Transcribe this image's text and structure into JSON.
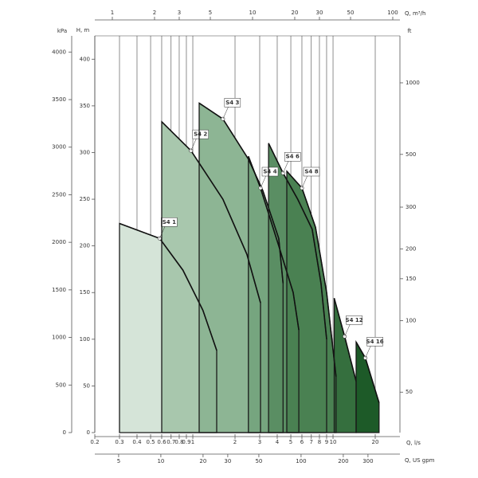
{
  "chart_data": {
    "type": "area",
    "x_label": "Q, l/s",
    "y_label": "H, m",
    "xscale": "log",
    "xlim": [
      0.2,
      30
    ],
    "xticks": [
      0.2,
      0.3,
      0.4,
      0.5,
      0.6,
      0.7,
      0.8,
      0.9,
      1,
      2,
      3,
      4,
      5,
      6,
      7,
      8,
      9,
      10,
      20
    ],
    "ylim": [
      0,
      425
    ],
    "yticks": [
      0,
      50,
      100,
      150,
      200,
      250,
      300,
      350,
      400
    ],
    "grid": "x",
    "series": [
      {
        "name": "S4 1",
        "color": "#d5e4d8",
        "x": [
          0.3,
          0.58,
          0.85,
          1.18,
          1.48
        ],
        "values": [
          224,
          208,
          174,
          131,
          88
        ]
      },
      {
        "name": "S4 2",
        "color": "#a8c7ad",
        "x": [
          0.6,
          0.97,
          1.64,
          2.43,
          3.04
        ],
        "values": [
          333,
          302,
          250,
          191,
          139
        ]
      },
      {
        "name": "S4 3",
        "color": "#8db594",
        "x": [
          1.11,
          1.64,
          2.49,
          3.16,
          4.1,
          4.4
        ],
        "values": [
          353,
          336,
          293,
          259,
          208,
          160
        ]
      },
      {
        "name": "S4 4",
        "color": "#76a57f",
        "x": [
          2.49,
          3.04,
          4.1,
          5.2,
          5.7
        ],
        "values": [
          296,
          262,
          200,
          150,
          110
        ]
      },
      {
        "name": "S4 6",
        "color": "#5a8e63",
        "x": [
          3.47,
          4.4,
          5.6,
          7.1,
          8.2,
          9.0
        ],
        "values": [
          310,
          278,
          250,
          218,
          160,
          100
        ]
      },
      {
        "name": "S4 8",
        "color": "#4a8152",
        "x": [
          4.68,
          6.0,
          7.5,
          9.0,
          10.5
        ],
        "values": [
          280,
          262,
          220,
          150,
          60
        ]
      },
      {
        "name": "S4 12",
        "color": "#356f3e",
        "x": [
          10.2,
          12.1,
          14.6
        ],
        "values": [
          144,
          103,
          55
        ]
      },
      {
        "name": "S4 16",
        "color": "#1d5a28",
        "x": [
          14.6,
          17,
          21.3
        ],
        "values": [
          97,
          80,
          32
        ]
      }
    ],
    "axes": [
      {
        "side": "left",
        "label": "kPa",
        "ylim": [
          0,
          4170
        ],
        "yticks": [
          0,
          500,
          1000,
          1500,
          2000,
          2500,
          3000,
          3500,
          4000
        ]
      },
      {
        "side": "right",
        "label": "ft",
        "scale": "log",
        "ylim": [
          33.8,
          1576
        ],
        "yticks": [
          50,
          100,
          150,
          200,
          300,
          500,
          1000
        ]
      },
      {
        "side": "top",
        "label": "Q, m³/h",
        "scale": "log",
        "xlim": [
          0.75,
          112.5
        ],
        "xticks": [
          1,
          2,
          3,
          5,
          10,
          20,
          30,
          50,
          100
        ]
      },
      {
        "side": "bottom",
        "label": "Q, US gpm",
        "scale": "log",
        "xlim": [
          3.38,
          507
        ],
        "xticks": [
          5,
          10,
          20,
          30,
          50,
          100,
          200,
          300
        ]
      }
    ]
  }
}
